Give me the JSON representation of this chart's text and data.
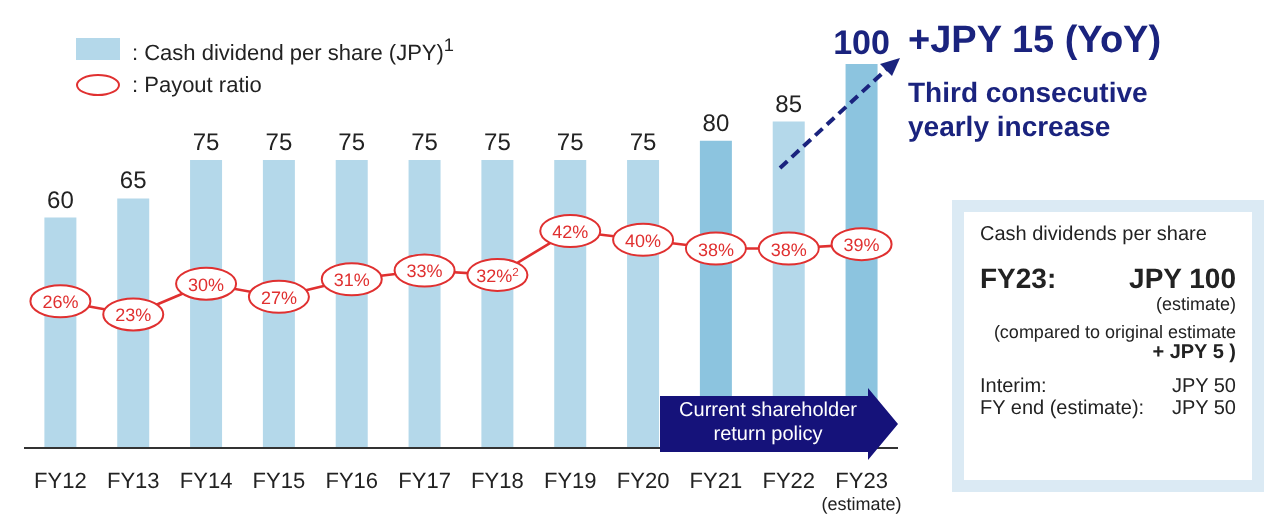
{
  "chart_data": {
    "type": "bar",
    "categories": [
      "FY12",
      "FY13",
      "FY14",
      "FY15",
      "FY16",
      "FY17",
      "FY18",
      "FY19",
      "FY20",
      "FY21",
      "FY22",
      "FY23$_{(estimate)}$"
    ],
    "series": [
      {
        "name": ": Cash dividend per share (JPY)$^{1}$",
        "color": "#b4d8ea",
        "colors": [
          "#b4d8ea",
          "#b4d8ea",
          "#b4d8ea",
          "#b4d8ea",
          "#b4d8ea",
          "#b4d8ea",
          "#b4d8ea",
          "#b4d8ea",
          "#b4d8ea",
          "#8cc4df",
          "#b4d8ea",
          "#8cc4df"
        ],
        "values": [
          60,
          65,
          75,
          75,
          75,
          75,
          75,
          75,
          75,
          80,
          85,
          100
        ]
      },
      {
        "name": ": Payout ratio",
        "type": "line",
        "axis": "y2",
        "color": "#e03030",
        "values": [
          26,
          23,
          30,
          27,
          31,
          33,
          32,
          42,
          40,
          38,
          38,
          39
        ],
        "value_labels": [
          "26%",
          "23%",
          "30%",
          "27%",
          "31%",
          "33%",
          "32%$^{2}$",
          "42%",
          "40%",
          "38%",
          "38%",
          "39%"
        ]
      }
    ],
    "data_labels": true,
    "marker": "circle",
    "line_style": "solid",
    "legend": "top left",
    "annotations": [
      "+JPY 15 (YoY)",
      "Third consecutive yearly increase",
      "Current shareholder return policy",
      "Cash dividends per share",
      "FY23:",
      "JPY 100",
      "(estimate)",
      "(compared to original estimate",
      "+ JPY 5 )",
      "Interim:",
      "JPY 50",
      "FY end (estimate):",
      "JPY 50"
    ]
  }
}
